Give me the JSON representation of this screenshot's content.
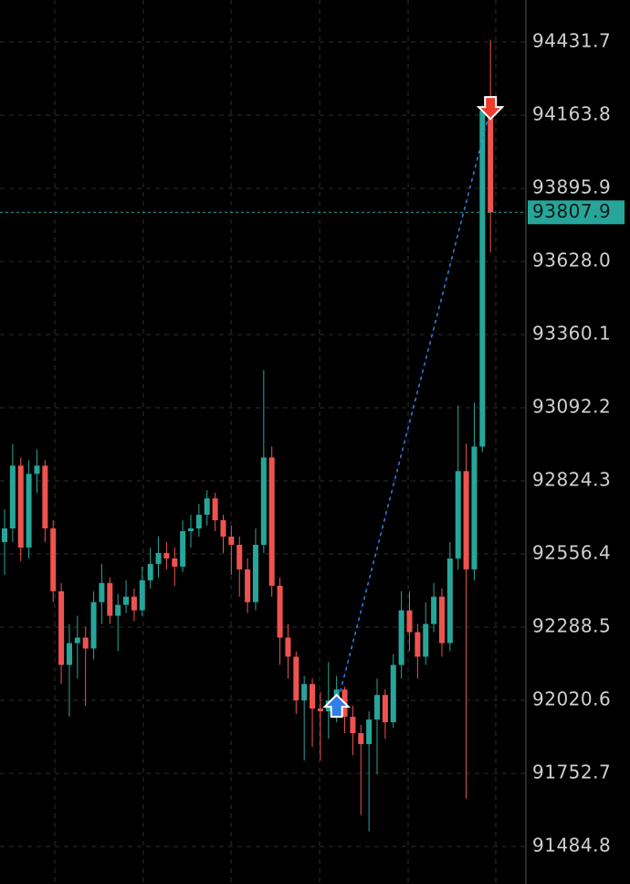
{
  "chart_data": {
    "type": "candlestick",
    "colors": {
      "up": "#26a69a",
      "down": "#ef5350"
    },
    "ylim": [
      91347.5,
      94585.7
    ],
    "yticks": [
      94431.7,
      94163.8,
      93895.9,
      {
        "value": 93628.0,
        "label": "93628.0"
      },
      93360.1,
      93092.2,
      92824.3,
      92556.4,
      92288.5,
      92020.6,
      91752.7,
      91484.8
    ],
    "grid": true,
    "open": [
      92600,
      92650,
      92880,
      92580,
      92850,
      92880,
      92650,
      92420,
      92150,
      92230,
      92250,
      92210,
      92380,
      92450,
      92330,
      92370,
      92400,
      92350,
      92460,
      92520,
      92560,
      92540,
      92510,
      92640,
      92650,
      92700,
      92760,
      92680,
      92620,
      92590,
      92500,
      92380,
      92590,
      92910,
      92440,
      92250,
      92180,
      92020,
      92080,
      91990,
      91980,
      92020,
      92060,
      91960,
      91900,
      91860,
      91950,
      92040,
      91940,
      92150,
      92350,
      92270,
      92180,
      92300,
      92400,
      92230,
      92540,
      92860,
      92500,
      92950,
      94180
    ],
    "high": [
      92720,
      92960,
      92910,
      92900,
      92940,
      92900,
      92680,
      92450,
      92300,
      92330,
      92290,
      92420,
      92520,
      92470,
      92410,
      92460,
      92430,
      92510,
      92580,
      92620,
      92600,
      92580,
      92680,
      92700,
      92740,
      92790,
      92780,
      92700,
      92660,
      92620,
      92540,
      92650,
      93230,
      92950,
      92470,
      92300,
      92200,
      92110,
      92100,
      92050,
      92160,
      92110,
      92070,
      92000,
      91930,
      91980,
      92100,
      92060,
      92190,
      92420,
      92420,
      92300,
      92380,
      92450,
      92430,
      92600,
      93100,
      92960,
      93110,
      94200,
      94440
    ],
    "low": [
      92480,
      92600,
      92530,
      92540,
      92780,
      92600,
      92380,
      92080,
      91960,
      92100,
      92000,
      92170,
      92300,
      92300,
      92200,
      92340,
      92310,
      92330,
      92430,
      92470,
      92500,
      92440,
      92490,
      92580,
      92620,
      92660,
      92640,
      92560,
      92480,
      92400,
      92340,
      92350,
      92560,
      92400,
      92150,
      92100,
      91970,
      91800,
      91850,
      91800,
      91880,
      91940,
      91900,
      91820,
      91600,
      91540,
      91750,
      91880,
      91920,
      92100,
      92200,
      92100,
      92150,
      92270,
      92180,
      92200,
      92500,
      91660,
      92460,
      92930,
      93660
    ],
    "close": [
      92650,
      92880,
      92580,
      92850,
      92880,
      92650,
      92420,
      92150,
      92230,
      92250,
      92210,
      92380,
      92450,
      92330,
      92370,
      92400,
      92350,
      92460,
      92520,
      92560,
      92540,
      92510,
      92640,
      92650,
      92700,
      92760,
      92680,
      92620,
      92590,
      92500,
      92380,
      92590,
      92910,
      92440,
      92250,
      92180,
      92020,
      92080,
      91990,
      91980,
      92020,
      92060,
      91960,
      91900,
      91860,
      91950,
      92040,
      91940,
      92150,
      92350,
      92270,
      92180,
      92300,
      92400,
      92230,
      92540,
      92860,
      92500,
      92950,
      94180,
      93808
    ],
    "last_price": 93807.9,
    "buy_marker": {
      "x": 41,
      "price": 92000
    },
    "sell_marker": {
      "x": 60,
      "price": 94190
    }
  }
}
